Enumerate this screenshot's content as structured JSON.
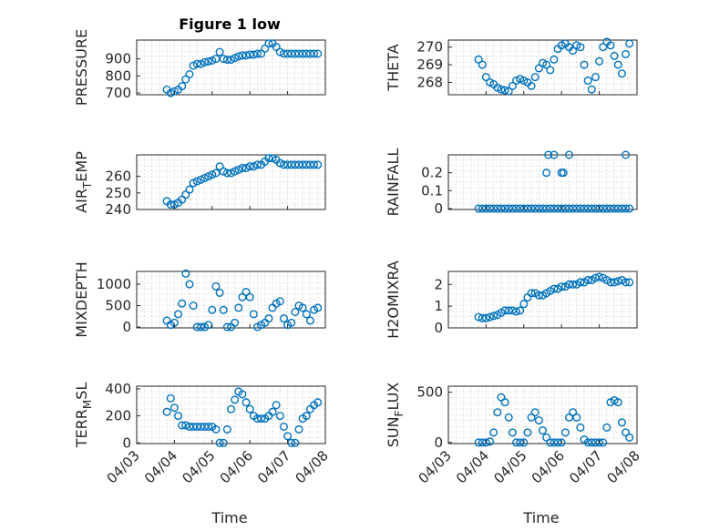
{
  "figure_title": "Figure 1 low",
  "x_label": "Time",
  "colors": {
    "marker": "#0072BD",
    "axis": "#262626",
    "grid": "#d9d9d9"
  },
  "chart_data": [
    {
      "type": "scatter",
      "ylabel": "PRESSURE",
      "title": "Figure 1 low",
      "xticks": [
        "04/03",
        "04/04",
        "04/05",
        "04/06",
        "04/07",
        "04/08"
      ],
      "xlim": [
        0,
        5
      ],
      "ylim": [
        690,
        1010
      ],
      "yticks": [
        700,
        800,
        900
      ],
      "ytick_labels": [
        "700",
        "800",
        "900"
      ],
      "x": [
        0.8,
        0.9,
        1.0,
        1.1,
        1.2,
        1.3,
        1.4,
        1.5,
        1.6,
        1.7,
        1.8,
        1.9,
        2.0,
        2.1,
        2.2,
        2.3,
        2.4,
        2.5,
        2.6,
        2.7,
        2.8,
        2.9,
        3.0,
        3.1,
        3.2,
        3.3,
        3.4,
        3.5,
        3.6,
        3.7,
        3.8,
        3.9,
        4.0,
        4.1,
        4.2,
        4.3,
        4.4,
        4.5,
        4.6,
        4.7,
        4.8
      ],
      "y": [
        720,
        700,
        710,
        720,
        740,
        780,
        810,
        860,
        870,
        870,
        880,
        885,
        890,
        900,
        940,
        900,
        895,
        895,
        905,
        915,
        920,
        920,
        925,
        925,
        930,
        930,
        960,
        990,
        990,
        970,
        940,
        930,
        930,
        930,
        930,
        930,
        930,
        930,
        930,
        930,
        930
      ]
    },
    {
      "type": "scatter",
      "ylabel": "THETA",
      "xticks": [
        "04/03",
        "04/04",
        "04/05",
        "04/06",
        "04/07",
        "04/08"
      ],
      "xlim": [
        0,
        5
      ],
      "ylim": [
        267.3,
        270.4
      ],
      "yticks": [
        268,
        269,
        270
      ],
      "ytick_labels": [
        "268",
        "269",
        "270"
      ],
      "x": [
        0.8,
        0.9,
        1.0,
        1.1,
        1.2,
        1.3,
        1.4,
        1.5,
        1.6,
        1.7,
        1.8,
        1.9,
        2.0,
        2.1,
        2.2,
        2.3,
        2.4,
        2.5,
        2.6,
        2.7,
        2.8,
        2.9,
        3.0,
        3.1,
        3.2,
        3.3,
        3.4,
        3.5,
        3.6,
        3.7,
        3.8,
        3.9,
        4.0,
        4.1,
        4.2,
        4.3,
        4.4,
        4.5,
        4.6,
        4.7,
        4.8
      ],
      "y": [
        269.3,
        269.0,
        268.3,
        268.0,
        267.9,
        267.7,
        267.6,
        267.55,
        267.5,
        267.8,
        268.1,
        268.2,
        268.1,
        268.0,
        267.8,
        268.3,
        268.8,
        269.1,
        269.0,
        268.7,
        269.3,
        269.9,
        270.1,
        270.2,
        270.0,
        269.8,
        270.1,
        270.0,
        269.0,
        268.1,
        267.6,
        268.3,
        269.2,
        270.0,
        270.3,
        270.1,
        269.5,
        269.0,
        268.5,
        269.6,
        270.2
      ]
    },
    {
      "type": "scatter",
      "ylabel": "AIR_TEMP",
      "xticks": [
        "04/03",
        "04/04",
        "04/05",
        "04/06",
        "04/07",
        "04/08"
      ],
      "xlim": [
        0,
        5
      ],
      "ylim": [
        240,
        273
      ],
      "yticks": [
        240,
        250,
        260
      ],
      "ytick_labels": [
        "240",
        "250",
        "260"
      ],
      "x": [
        0.8,
        0.9,
        1.0,
        1.1,
        1.2,
        1.3,
        1.4,
        1.5,
        1.6,
        1.7,
        1.8,
        1.9,
        2.0,
        2.1,
        2.2,
        2.3,
        2.4,
        2.5,
        2.6,
        2.7,
        2.8,
        2.9,
        3.0,
        3.1,
        3.2,
        3.3,
        3.4,
        3.5,
        3.6,
        3.7,
        3.8,
        3.9,
        4.0,
        4.1,
        4.2,
        4.3,
        4.4,
        4.5,
        4.6,
        4.7,
        4.8
      ],
      "y": [
        245,
        243,
        243,
        244,
        246,
        249,
        252,
        256,
        257,
        258,
        259,
        260,
        261,
        262,
        266,
        263,
        262,
        262,
        263,
        264,
        265,
        265,
        266,
        266,
        267,
        267,
        269,
        271,
        271,
        270,
        268,
        267,
        267,
        267,
        267,
        267,
        267,
        267,
        267,
        267,
        267
      ]
    },
    {
      "type": "scatter",
      "ylabel": "RAINFALL",
      "xticks": [
        "04/03",
        "04/04",
        "04/05",
        "04/06",
        "04/07",
        "04/08"
      ],
      "xlim": [
        0,
        5
      ],
      "ylim": [
        -0.005,
        0.3
      ],
      "yticks": [
        0,
        0.1,
        0.2
      ],
      "ytick_labels": [
        "0",
        "0.1",
        "0.2"
      ],
      "x": [
        0.8,
        0.9,
        1.0,
        1.1,
        1.2,
        1.3,
        1.4,
        1.5,
        1.6,
        1.7,
        1.8,
        1.9,
        2.0,
        2.1,
        2.2,
        2.3,
        2.4,
        2.5,
        2.6,
        2.7,
        2.8,
        2.9,
        3.0,
        3.1,
        3.2,
        3.3,
        3.4,
        3.5,
        3.6,
        3.7,
        3.8,
        3.9,
        4.0,
        4.1,
        4.2,
        4.3,
        4.4,
        4.5,
        4.6,
        4.7,
        4.8,
        2.6,
        2.65,
        2.8,
        3.0,
        3.05,
        3.2,
        4.7
      ],
      "y": [
        0,
        0,
        0,
        0,
        0,
        0,
        0,
        0,
        0,
        0,
        0,
        0,
        0,
        0,
        0,
        0,
        0,
        0,
        0,
        0,
        0,
        0,
        0,
        0,
        0,
        0,
        0,
        0,
        0,
        0,
        0,
        0,
        0,
        0,
        0,
        0,
        0,
        0,
        0,
        0,
        0,
        0.2,
        0.3,
        0.3,
        0.2,
        0.2,
        0.3,
        0.3
      ]
    },
    {
      "type": "scatter",
      "ylabel": "MIXDEPTH",
      "xticks": [
        "04/03",
        "04/04",
        "04/05",
        "04/06",
        "04/07",
        "04/08"
      ],
      "xlim": [
        0,
        5
      ],
      "ylim": [
        -20,
        1300
      ],
      "yticks": [
        0,
        500,
        1000
      ],
      "ytick_labels": [
        "0",
        "500",
        "1000"
      ],
      "x": [
        0.8,
        0.9,
        1.0,
        1.1,
        1.2,
        1.3,
        1.4,
        1.5,
        1.6,
        1.7,
        1.8,
        1.9,
        2.0,
        2.1,
        2.2,
        2.3,
        2.4,
        2.5,
        2.6,
        2.7,
        2.8,
        2.9,
        3.0,
        3.1,
        3.2,
        3.3,
        3.4,
        3.5,
        3.6,
        3.7,
        3.8,
        3.9,
        4.0,
        4.1,
        4.2,
        4.3,
        4.4,
        4.5,
        4.6,
        4.7,
        4.8
      ],
      "y": [
        150,
        50,
        100,
        300,
        550,
        1250,
        1000,
        500,
        0,
        0,
        0,
        50,
        400,
        950,
        800,
        400,
        0,
        0,
        100,
        450,
        700,
        820,
        700,
        300,
        0,
        50,
        100,
        200,
        450,
        550,
        600,
        200,
        50,
        100,
        350,
        500,
        450,
        300,
        150,
        400,
        450
      ]
    },
    {
      "type": "scatter",
      "ylabel": "H2OMIXRA",
      "xticks": [
        "04/03",
        "04/04",
        "04/05",
        "04/06",
        "04/07",
        "04/08"
      ],
      "xlim": [
        0,
        5
      ],
      "ylim": [
        0,
        2.6
      ],
      "yticks": [
        0,
        1,
        2
      ],
      "ytick_labels": [
        "0",
        "1",
        "2"
      ],
      "x": [
        0.8,
        0.9,
        1.0,
        1.1,
        1.2,
        1.3,
        1.4,
        1.5,
        1.6,
        1.7,
        1.8,
        1.9,
        2.0,
        2.1,
        2.2,
        2.3,
        2.4,
        2.5,
        2.6,
        2.7,
        2.8,
        2.9,
        3.0,
        3.1,
        3.2,
        3.3,
        3.4,
        3.5,
        3.6,
        3.7,
        3.8,
        3.9,
        4.0,
        4.1,
        4.2,
        4.3,
        4.4,
        4.5,
        4.6,
        4.7,
        4.8
      ],
      "y": [
        0.5,
        0.45,
        0.45,
        0.5,
        0.55,
        0.6,
        0.7,
        0.8,
        0.8,
        0.8,
        0.75,
        0.8,
        1.1,
        1.4,
        1.6,
        1.6,
        1.5,
        1.5,
        1.6,
        1.7,
        1.8,
        1.8,
        1.9,
        1.9,
        2.0,
        2.0,
        2.0,
        2.1,
        2.1,
        2.2,
        2.2,
        2.3,
        2.35,
        2.3,
        2.2,
        2.1,
        2.1,
        2.15,
        2.2,
        2.1,
        2.1
      ]
    },
    {
      "type": "scatter",
      "ylabel": "TERR_MSL",
      "xticks": [
        "04/03",
        "04/04",
        "04/05",
        "04/06",
        "04/07",
        "04/08"
      ],
      "xlim": [
        0,
        5
      ],
      "ylim": [
        -5,
        420
      ],
      "yticks": [
        0,
        200,
        400
      ],
      "ytick_labels": [
        "0",
        "200",
        "400"
      ],
      "x": [
        0.8,
        0.9,
        1.0,
        1.1,
        1.2,
        1.3,
        1.4,
        1.5,
        1.6,
        1.7,
        1.8,
        1.9,
        2.0,
        2.1,
        2.2,
        2.3,
        2.4,
        2.5,
        2.6,
        2.7,
        2.8,
        2.9,
        3.0,
        3.1,
        3.2,
        3.3,
        3.4,
        3.5,
        3.6,
        3.7,
        3.8,
        3.9,
        4.0,
        4.1,
        4.2,
        4.3,
        4.4,
        4.5,
        4.6,
        4.7,
        4.8
      ],
      "y": [
        230,
        330,
        260,
        200,
        130,
        130,
        120,
        120,
        120,
        120,
        120,
        120,
        120,
        100,
        0,
        0,
        100,
        250,
        320,
        380,
        360,
        300,
        250,
        200,
        180,
        180,
        180,
        200,
        230,
        280,
        200,
        120,
        50,
        0,
        0,
        100,
        180,
        200,
        250,
        280,
        300
      ]
    },
    {
      "type": "scatter",
      "ylabel": "SUN_FLUX",
      "xticks": [
        "04/03",
        "04/04",
        "04/05",
        "04/06",
        "04/07",
        "04/08"
      ],
      "xlim": [
        0,
        5
      ],
      "ylim": [
        -10,
        560
      ],
      "yticks": [
        0,
        500
      ],
      "ytick_labels": [
        "0",
        "500"
      ],
      "x": [
        0.8,
        0.9,
        1.0,
        1.1,
        1.2,
        1.3,
        1.4,
        1.5,
        1.6,
        1.7,
        1.8,
        1.9,
        2.0,
        2.1,
        2.2,
        2.3,
        2.4,
        2.5,
        2.6,
        2.7,
        2.8,
        2.9,
        3.0,
        3.1,
        3.2,
        3.3,
        3.4,
        3.5,
        3.6,
        3.7,
        3.8,
        3.9,
        4.0,
        4.1,
        4.2,
        4.3,
        4.4,
        4.5,
        4.6,
        4.7,
        4.8
      ],
      "y": [
        0,
        0,
        0,
        10,
        100,
        300,
        450,
        400,
        250,
        100,
        0,
        0,
        0,
        100,
        250,
        300,
        220,
        120,
        50,
        0,
        0,
        0,
        0,
        100,
        250,
        300,
        250,
        150,
        30,
        0,
        0,
        0,
        0,
        0,
        150,
        400,
        420,
        400,
        200,
        100,
        50
      ]
    }
  ]
}
